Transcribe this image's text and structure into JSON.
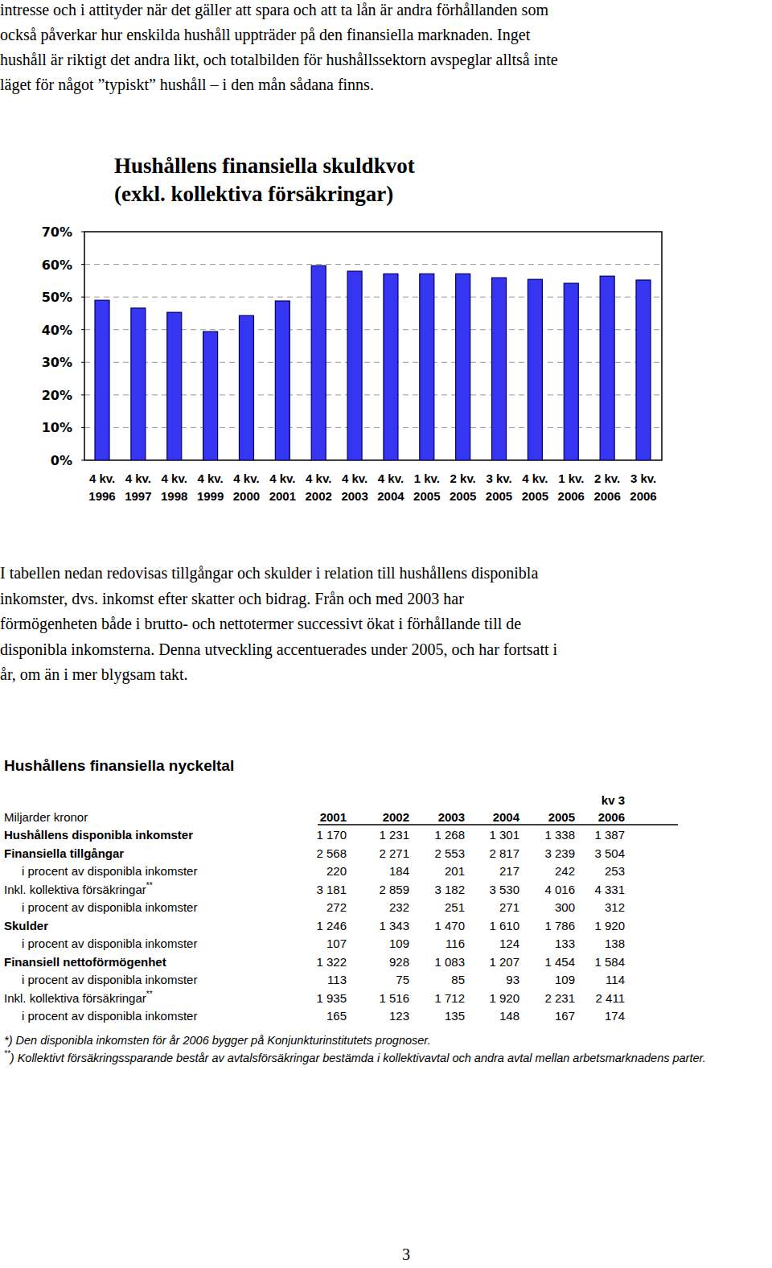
{
  "intro_text": {
    "lines": [
      "intresse och i attityder när det gäller att spara och att ta lån är andra förhållanden som",
      "också påverkar hur enskilda hushåll uppträder på den finansiella marknaden. Inget",
      "hushåll är riktigt det andra likt, och totalbilden för hushållssektorn avspeglar alltså inte",
      "läget för något ”typiskt” hushåll – i den mån sådana finns."
    ]
  },
  "chart_data": {
    "type": "bar",
    "title": "Hushållens finansiella skuldkvot",
    "subtitle": "(exkl. kollektiva försäkringar)",
    "categories": [
      "4 kv. 1996",
      "4 kv. 1997",
      "4 kv. 1998",
      "4 kv. 1999",
      "4 kv. 2000",
      "4 kv. 2001",
      "4 kv. 2002",
      "4 kv. 2003",
      "4 kv. 2004",
      "1 kv. 2005",
      "2 kv. 2005",
      "3 kv. 2005",
      "4 kv. 2005",
      "1 kv. 2006",
      "2 kv. 2006",
      "3 kv. 2006"
    ],
    "values": [
      49,
      46.6,
      45.3,
      39.4,
      44.3,
      48.8,
      59.6,
      57.9,
      57.1,
      57.1,
      57.1,
      55.9,
      55.4,
      54.2,
      56.4,
      55.2
    ],
    "color": "#3535f2",
    "ylim": [
      0,
      70
    ],
    "yticks": [
      {
        "value": 0,
        "label": "0%"
      },
      {
        "value": 10,
        "label": "10%"
      },
      {
        "value": 20,
        "label": "20%"
      },
      {
        "value": 30,
        "label": "30%"
      },
      {
        "value": 40,
        "label": "40%"
      },
      {
        "value": 50,
        "label": "50%"
      },
      {
        "value": 60,
        "label": "60%"
      },
      {
        "value": 70,
        "label": "70%"
      }
    ],
    "grid": true
  },
  "body_text": {
    "lines": [
      "I tabellen nedan redovisas tillgångar och skulder i relation till hushållens disponibla",
      "inkomster, dvs. inkomst efter skatter och bidrag. Från och med 2003 har",
      "förmögenheten både i brutto- och nettotermer successivt ökat i förhållande till de",
      "disponibla inkomsterna. Denna utveckling accentuerades under 2005, och har fortsatt i",
      "år, om än i mer blygsam takt."
    ]
  },
  "table": {
    "title": "Hushållens finansiella nyckeltal",
    "unit": "Miljarder kronor",
    "columns": [
      "2001",
      "2002",
      "2003",
      "2004",
      "2005",
      "2006"
    ],
    "latest_period": "kv 3",
    "rows": [
      {
        "label": "Hushållens disponibla inkomster",
        "bold": true,
        "values": [
          "1 170",
          "1 231",
          "1 268",
          "1 301",
          "1 338",
          "1 387"
        ]
      },
      {
        "label": "Finansiella tillgångar",
        "bold": true,
        "values": [
          "2 568",
          "2 271",
          "2 553",
          "2 817",
          "3 239",
          "3 504"
        ]
      },
      {
        "label": "i procent av disponibla inkomster",
        "indent": true,
        "values": [
          "220",
          "184",
          "201",
          "217",
          "242",
          "253"
        ]
      },
      {
        "label": "Inkl. kollektiva försäkringar",
        "note": "**",
        "values": [
          "3 181",
          "2 859",
          "3 182",
          "3 530",
          "4 016",
          "4 331"
        ]
      },
      {
        "label": "i procent av disponibla inkomster",
        "indent": true,
        "values": [
          "272",
          "232",
          "251",
          "271",
          "300",
          "312"
        ]
      },
      {
        "label": "Skulder",
        "bold": true,
        "values": [
          "1 246",
          "1 343",
          "1 470",
          "1 610",
          "1 786",
          "1 920"
        ]
      },
      {
        "label": "i procent av disponibla inkomster",
        "indent": true,
        "values": [
          "107",
          "109",
          "116",
          "124",
          "133",
          "138"
        ]
      },
      {
        "label": "Finansiell nettoförmögenhet",
        "bold": true,
        "values": [
          "1 322",
          "928",
          "1 083",
          "1 207",
          "1 454",
          "1 584"
        ]
      },
      {
        "label": "i procent av disponibla inkomster",
        "indent": true,
        "values": [
          "113",
          "75",
          "85",
          "93",
          "109",
          "114"
        ]
      },
      {
        "label": "Inkl. kollektiva försäkringar",
        "note": "**",
        "values": [
          "1 935",
          "1 516",
          "1 712",
          "1 920",
          "2 231",
          "2 411"
        ]
      },
      {
        "label": "i procent av disponibla inkomster",
        "indent": true,
        "values": [
          "165",
          "123",
          "135",
          "148",
          "167",
          "174"
        ]
      }
    ]
  },
  "footnotes": [
    {
      "marker": "*",
      "text": ") Den disponibla inkomsten för år 2006 bygger på Konjunkturinstitutets prognoser."
    },
    {
      "marker": "**",
      "superscript": true,
      "text": ") Kollektivt försäkringssparande består av avtalsförsäkringar bestämda i kollektivavtal och andra avtal mellan arbetsmarknadens parter."
    }
  ],
  "page_number": "3"
}
